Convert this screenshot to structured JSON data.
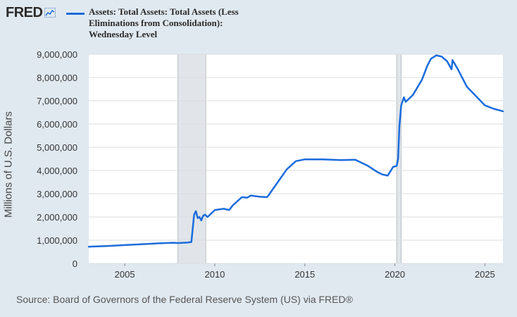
{
  "logo": {
    "text": "FRED",
    "icon": "trend-line-icon"
  },
  "source": "Source: Board of Governors of the Federal Reserve System (US) via FRED®",
  "colors": {
    "series": "#1a6cdc",
    "background": "#e1e9f0",
    "plot": "#ffffff",
    "recession": "#e1e5e9"
  },
  "chart_data": {
    "type": "line",
    "title": "",
    "ylabel": "Millions of U.S. Dollars",
    "xlabel": "",
    "xlim": [
      2003.0,
      2026.0
    ],
    "ylim": [
      0,
      9000000
    ],
    "x_ticks": [
      2005,
      2010,
      2015,
      2020,
      2025
    ],
    "y_ticks": [
      {
        "value": 0,
        "label": "0"
      },
      {
        "value": 1000000,
        "label": "1,000,000"
      },
      {
        "value": 2000000,
        "label": "2,000,000"
      },
      {
        "value": 3000000,
        "label": "3,000,000"
      },
      {
        "value": 4000000,
        "label": "4,000,000"
      },
      {
        "value": 5000000,
        "label": "5,000,000"
      },
      {
        "value": 6000000,
        "label": "6,000,000"
      },
      {
        "value": 7000000,
        "label": "7,000,000"
      },
      {
        "value": 8000000,
        "label": "8,000,000"
      },
      {
        "value": 9000000,
        "label": "9,000,000"
      }
    ],
    "grid": true,
    "legend": "top-left",
    "recessions": [
      [
        2007.95,
        2009.5
      ],
      [
        2020.1,
        2020.35
      ]
    ],
    "series": [
      {
        "name": "Assets: Total Assets: Total Assets (Less Eliminations from Consolidation): Wednesday Level",
        "points": [
          [
            2003.0,
            720000
          ],
          [
            2004.0,
            750000
          ],
          [
            2005.0,
            790000
          ],
          [
            2006.0,
            830000
          ],
          [
            2007.0,
            870000
          ],
          [
            2007.7,
            890000
          ],
          [
            2008.0,
            880000
          ],
          [
            2008.5,
            900000
          ],
          [
            2008.7,
            920000
          ],
          [
            2008.85,
            2100000
          ],
          [
            2008.95,
            2250000
          ],
          [
            2009.05,
            1950000
          ],
          [
            2009.15,
            2000000
          ],
          [
            2009.25,
            1850000
          ],
          [
            2009.35,
            2050000
          ],
          [
            2009.45,
            2100000
          ],
          [
            2009.6,
            2000000
          ],
          [
            2010.0,
            2300000
          ],
          [
            2010.5,
            2350000
          ],
          [
            2010.8,
            2300000
          ],
          [
            2011.0,
            2500000
          ],
          [
            2011.5,
            2850000
          ],
          [
            2011.8,
            2830000
          ],
          [
            2012.0,
            2920000
          ],
          [
            2012.5,
            2870000
          ],
          [
            2012.9,
            2850000
          ],
          [
            2013.0,
            2950000
          ],
          [
            2013.5,
            3500000
          ],
          [
            2014.0,
            4050000
          ],
          [
            2014.5,
            4400000
          ],
          [
            2015.0,
            4480000
          ],
          [
            2016.0,
            4480000
          ],
          [
            2017.0,
            4450000
          ],
          [
            2017.8,
            4460000
          ],
          [
            2018.5,
            4200000
          ],
          [
            2019.0,
            3950000
          ],
          [
            2019.3,
            3830000
          ],
          [
            2019.6,
            3780000
          ],
          [
            2019.7,
            3900000
          ],
          [
            2019.9,
            4150000
          ],
          [
            2020.1,
            4200000
          ],
          [
            2020.18,
            4500000
          ],
          [
            2020.25,
            5900000
          ],
          [
            2020.35,
            6800000
          ],
          [
            2020.5,
            7150000
          ],
          [
            2020.6,
            6950000
          ],
          [
            2021.0,
            7250000
          ],
          [
            2021.5,
            7900000
          ],
          [
            2021.8,
            8500000
          ],
          [
            2022.0,
            8800000
          ],
          [
            2022.3,
            8950000
          ],
          [
            2022.6,
            8900000
          ],
          [
            2022.9,
            8700000
          ],
          [
            2023.15,
            8350000
          ],
          [
            2023.2,
            8750000
          ],
          [
            2023.5,
            8350000
          ],
          [
            2024.0,
            7600000
          ],
          [
            2024.5,
            7200000
          ],
          [
            2025.0,
            6800000
          ],
          [
            2025.5,
            6650000
          ],
          [
            2026.0,
            6550000
          ]
        ]
      }
    ]
  }
}
